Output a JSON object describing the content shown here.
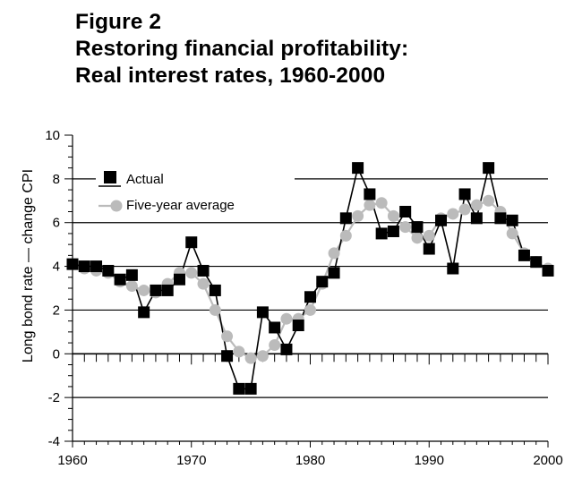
{
  "figure": {
    "label": "Figure 2",
    "title_line1": "Restoring financial profitability:",
    "title_line2": "Real interest rates, 1960-2000"
  },
  "chart_data": {
    "type": "line",
    "title": "Restoring financial profitability: Real interest rates, 1960-2000",
    "xlabel": "",
    "ylabel": "Long bond rate — change CPI",
    "xlim": [
      1960,
      2000
    ],
    "ylim": [
      -4,
      10
    ],
    "x_ticks": [
      1960,
      1970,
      1980,
      1990,
      2000
    ],
    "y_ticks": [
      -4,
      -2,
      0,
      2,
      4,
      6,
      8,
      10
    ],
    "y_gridlines": [
      -2,
      2,
      4,
      6,
      8
    ],
    "legend": [
      "Actual",
      "Five-year average"
    ],
    "legend_placement": "top-left",
    "series": [
      {
        "name": "Actual",
        "color": "#000000",
        "marker": "square",
        "x": [
          1960,
          1961,
          1962,
          1963,
          1964,
          1965,
          1966,
          1967,
          1968,
          1969,
          1970,
          1971,
          1972,
          1973,
          1974,
          1975,
          1976,
          1977,
          1978,
          1979,
          1980,
          1981,
          1982,
          1983,
          1984,
          1985,
          1986,
          1987,
          1988,
          1989,
          1990,
          1991,
          1992,
          1993,
          1994,
          1995,
          1996,
          1997,
          1998,
          1999,
          2000
        ],
        "y": [
          4.1,
          4.0,
          4.0,
          3.8,
          3.4,
          3.6,
          1.9,
          2.9,
          2.9,
          3.4,
          5.1,
          3.8,
          2.9,
          -0.1,
          -1.6,
          -1.6,
          1.9,
          1.2,
          0.2,
          1.3,
          2.6,
          3.3,
          3.7,
          6.2,
          8.5,
          7.3,
          5.5,
          5.6,
          6.5,
          5.8,
          4.8,
          6.1,
          3.9,
          7.3,
          6.2,
          8.5,
          6.2,
          6.1,
          4.5,
          4.2,
          3.8
        ]
      },
      {
        "name": "Five-year average",
        "color": "#bbbbbb",
        "marker": "circle",
        "x": [
          1960,
          1961,
          1962,
          1963,
          1964,
          1965,
          1966,
          1967,
          1968,
          1969,
          1970,
          1971,
          1972,
          1973,
          1974,
          1975,
          1976,
          1977,
          1978,
          1979,
          1980,
          1981,
          1982,
          1983,
          1984,
          1985,
          1986,
          1987,
          1988,
          1989,
          1990,
          1991,
          1992,
          1993,
          1994,
          1995,
          1996,
          1997,
          1998,
          1999,
          2000
        ],
        "y": [
          4.1,
          3.9,
          3.8,
          3.7,
          3.3,
          3.1,
          2.9,
          2.8,
          3.2,
          3.7,
          3.7,
          3.2,
          2.0,
          0.8,
          0.1,
          -0.2,
          -0.1,
          0.4,
          1.6,
          1.6,
          2.0,
          3.2,
          4.6,
          5.4,
          6.3,
          6.8,
          6.9,
          6.3,
          5.8,
          5.3,
          5.4,
          6.2,
          6.4,
          6.6,
          6.8,
          7.0,
          6.5,
          5.5,
          4.6,
          4.2,
          3.9
        ]
      }
    ]
  }
}
